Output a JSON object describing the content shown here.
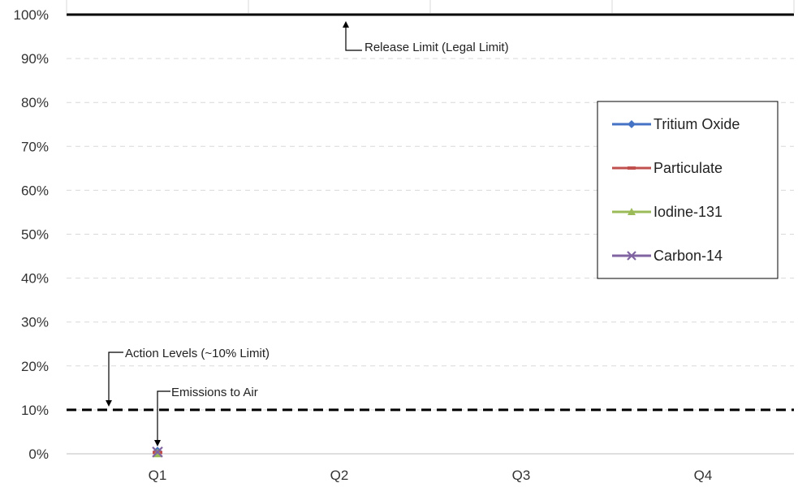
{
  "chart_data": {
    "type": "line",
    "title": "",
    "xlabel": "",
    "ylabel": "",
    "categories": [
      "Q1",
      "Q2",
      "Q3",
      "Q4"
    ],
    "y_ticks": [
      "0%",
      "10%",
      "20%",
      "30%",
      "40%",
      "50%",
      "60%",
      "70%",
      "80%",
      "90%",
      "100%"
    ],
    "ylim": [
      0,
      100
    ],
    "grid": "horizontal-dashed",
    "legend_position": "right",
    "series": [
      {
        "name": "Tritium Oxide",
        "color": "#4472C4",
        "marker": "diamond",
        "values": [
          0.5,
          null,
          null,
          null
        ]
      },
      {
        "name": "Particulate",
        "color": "#C0504D",
        "marker": "dash",
        "values": [
          0.3,
          null,
          null,
          null
        ]
      },
      {
        "name": "Iodine-131",
        "color": "#9BBB59",
        "marker": "triangle",
        "values": [
          0.1,
          null,
          null,
          null
        ]
      },
      {
        "name": "Carbon-14",
        "color": "#8064A2",
        "marker": "x",
        "values": [
          0.4,
          null,
          null,
          null
        ]
      }
    ],
    "reference_lines": [
      {
        "value": 100,
        "style": "solid",
        "color": "#000000"
      },
      {
        "value": 10,
        "style": "dashed",
        "color": "#000000"
      }
    ],
    "annotations": [
      {
        "text": "Release Limit (Legal Limit)"
      },
      {
        "text": "Action Levels (~10% Limit)"
      },
      {
        "text": "Emissions to Air"
      }
    ]
  }
}
